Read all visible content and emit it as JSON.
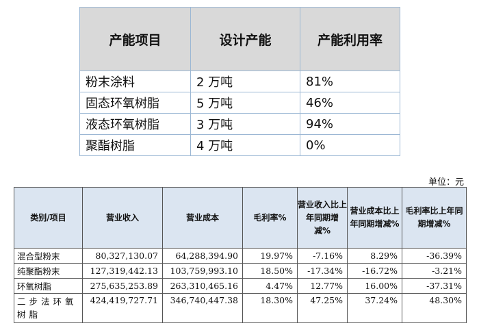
{
  "capacity_table": {
    "headers": [
      "产能项目",
      "设计产能",
      "产能利用率"
    ],
    "rows": [
      [
        "粉末涂料",
        "2 万吨",
        "81%"
      ],
      [
        "固态环氧树脂",
        "5 万吨",
        "46%"
      ],
      [
        "液态环氧树脂",
        "3 万吨",
        "94%"
      ],
      [
        "聚酯树脂",
        "4 万吨",
        "0%"
      ]
    ]
  },
  "unit_label": "单位：元",
  "financial_table": {
    "headers": [
      "类别/项目",
      "营业收入",
      "营业成本",
      "毛利率%",
      "营业收入比上年同期增减%",
      "营业成本比上年同期增减%",
      "毛利率比上年同期增减%"
    ],
    "rows": [
      [
        "混合型粉末",
        "80,327,130.07",
        "64,288,394.90",
        "19.97%",
        "-7.16%",
        "8.29%",
        "-36.39%"
      ],
      [
        "纯聚酯粉末",
        "127,319,442.13",
        "103,759,993.10",
        "18.50%",
        "-17.34%",
        "-16.72%",
        "-3.21%"
      ],
      [
        "环氧树脂",
        "275,635,253.89",
        "263,310,465.16",
        "4.47%",
        "12.77%",
        "16.00%",
        "-37.31%"
      ],
      [
        "二步法环氧树脂",
        "424,419,727.71",
        "346,740,447.38",
        "18.30%",
        "47.25%",
        "37.24%",
        "48.30%"
      ]
    ]
  }
}
